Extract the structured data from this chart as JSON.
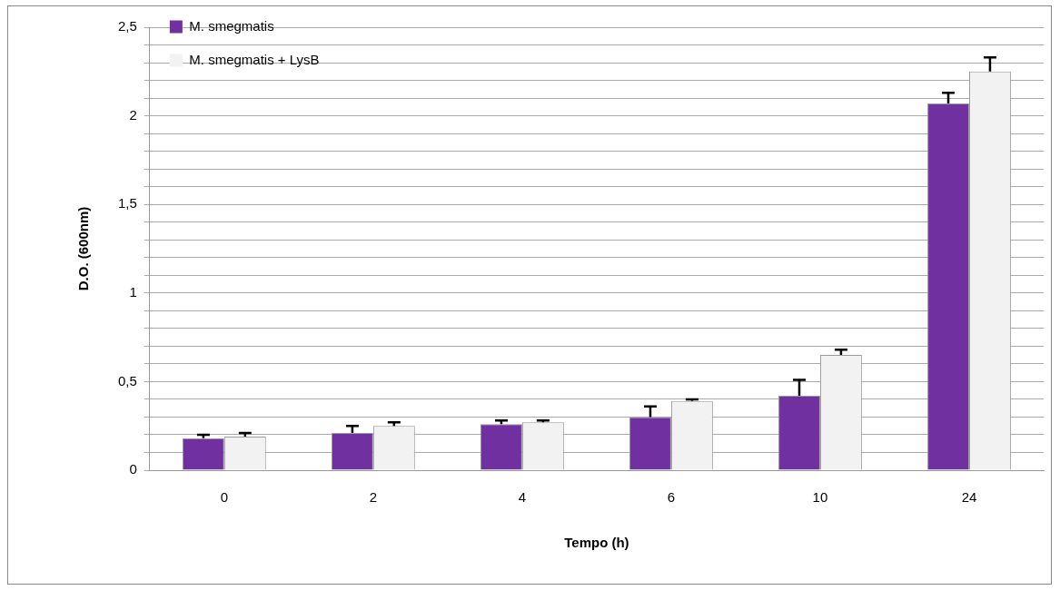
{
  "chart_data": {
    "type": "bar",
    "xlabel": "Tempo (h)",
    "ylabel": "D.O. (600nm)",
    "categories": [
      "0",
      "2",
      "4",
      "6",
      "10",
      "24"
    ],
    "series": [
      {
        "name": "M. smegmatis",
        "color": "#7030a0",
        "values": [
          0.18,
          0.21,
          0.26,
          0.3,
          0.42,
          2.07
        ],
        "errors": [
          [
            0.18,
            0.2
          ],
          [
            0.21,
            0.25
          ],
          [
            0.26,
            0.28
          ],
          [
            0.3,
            0.36
          ],
          [
            0.42,
            0.51
          ],
          [
            2.07,
            2.13
          ]
        ]
      },
      {
        "name": "M. smegmatis + LysB",
        "color": "#f2f2f2",
        "values": [
          0.19,
          0.25,
          0.27,
          0.39,
          0.65,
          2.25
        ],
        "errors": [
          [
            0.19,
            0.21
          ],
          [
            0.25,
            0.27
          ],
          [
            0.27,
            0.28
          ],
          [
            0.39,
            0.4
          ],
          [
            0.65,
            0.68
          ],
          [
            2.25,
            2.33
          ]
        ]
      }
    ],
    "ylim": [
      0,
      2.5
    ],
    "yticks": [
      {
        "value": 0,
        "label": "0"
      },
      {
        "value": 0.1,
        "label": null
      },
      {
        "value": 0.2,
        "label": null
      },
      {
        "value": 0.3,
        "label": null
      },
      {
        "value": 0.4,
        "label": null
      },
      {
        "value": 0.5,
        "label": "0,5"
      },
      {
        "value": 0.6,
        "label": null
      },
      {
        "value": 0.7,
        "label": null
      },
      {
        "value": 0.8,
        "label": null
      },
      {
        "value": 0.9,
        "label": null
      },
      {
        "value": 1,
        "label": "1"
      },
      {
        "value": 1.1,
        "label": null
      },
      {
        "value": 1.2,
        "label": null
      },
      {
        "value": 1.3,
        "label": null
      },
      {
        "value": 1.4,
        "label": null
      },
      {
        "value": 1.5,
        "label": "1,5"
      },
      {
        "value": 1.6,
        "label": null
      },
      {
        "value": 1.7,
        "label": null
      },
      {
        "value": 1.8,
        "label": null
      },
      {
        "value": 1.9,
        "label": null
      },
      {
        "value": 2,
        "label": "2"
      },
      {
        "value": 2.1,
        "label": null
      },
      {
        "value": 2.2,
        "label": null
      },
      {
        "value": 2.3,
        "label": null
      },
      {
        "value": 2.4,
        "label": null
      },
      {
        "value": 2.5,
        "label": "2,5"
      }
    ],
    "grid": "y",
    "legend": "top left"
  }
}
